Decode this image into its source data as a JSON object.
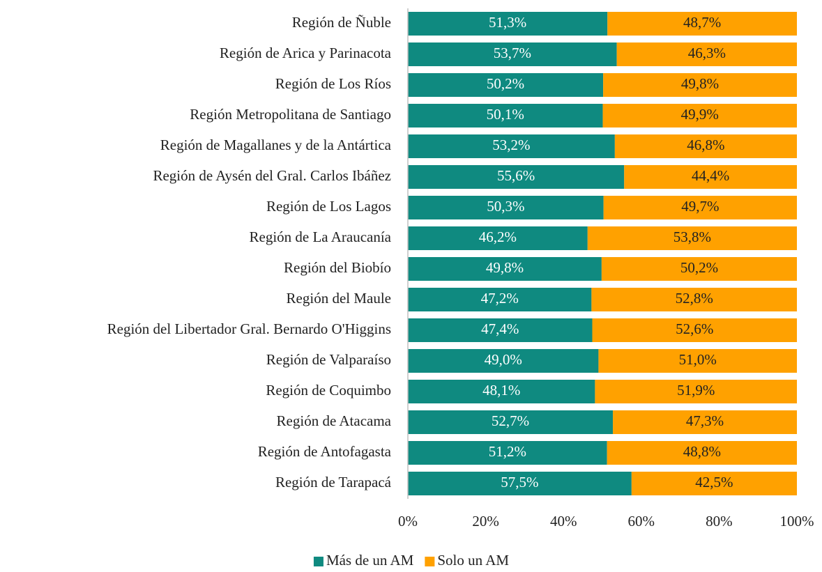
{
  "chart_data": {
    "type": "stacked-bar-horizontal",
    "categories": [
      "Región de Ñuble",
      "Región de Arica y Parinacota",
      "Región de Los Ríos",
      "Región Metropolitana de Santiago",
      "Región de Magallanes y de la Antártica",
      "Región de Aysén del Gral. Carlos Ibáñez",
      "Región de Los Lagos",
      "Región de La Araucanía",
      "Región del Biobío",
      "Región del Maule",
      "Región del Libertador Gral. Bernardo O'Higgins",
      "Región de Valparaíso",
      "Región de Coquimbo",
      "Región de Atacama",
      "Región de Antofagasta",
      "Región de Tarapacá"
    ],
    "series": [
      {
        "name": "Más de un AM",
        "color": "#0f8a80",
        "values": [
          51.3,
          53.7,
          50.2,
          50.1,
          53.2,
          55.6,
          50.3,
          46.2,
          49.8,
          47.2,
          47.4,
          49.0,
          48.1,
          52.7,
          51.2,
          57.5
        ],
        "value_labels": [
          "51,3%",
          "53,7%",
          "50,2%",
          "50,1%",
          "53,2%",
          "55,6%",
          "50,3%",
          "46,2%",
          "49,8%",
          "47,2%",
          "47,4%",
          "49,0%",
          "48,1%",
          "52,7%",
          "51,2%",
          "57,5%"
        ]
      },
      {
        "name": "Solo un AM",
        "color": "#ffa100",
        "values": [
          48.7,
          46.3,
          49.8,
          49.9,
          46.8,
          44.4,
          49.7,
          53.8,
          50.2,
          52.8,
          52.6,
          51.0,
          51.9,
          47.3,
          48.8,
          42.5
        ],
        "value_labels": [
          "48,7%",
          "46,3%",
          "49,8%",
          "49,9%",
          "46,8%",
          "44,4%",
          "49,7%",
          "53,8%",
          "50,2%",
          "52,8%",
          "52,6%",
          "51,0%",
          "51,9%",
          "47,3%",
          "48,8%",
          "42,5%"
        ]
      }
    ],
    "xlim": [
      0,
      100
    ],
    "xticks": [
      {
        "value": 0,
        "label": "0%"
      },
      {
        "value": 20,
        "label": "20%"
      },
      {
        "value": 40,
        "label": "40%"
      },
      {
        "value": 60,
        "label": "60%"
      },
      {
        "value": 80,
        "label": "80%"
      },
      {
        "value": 100,
        "label": "100%"
      }
    ],
    "legend": "bottom"
  }
}
